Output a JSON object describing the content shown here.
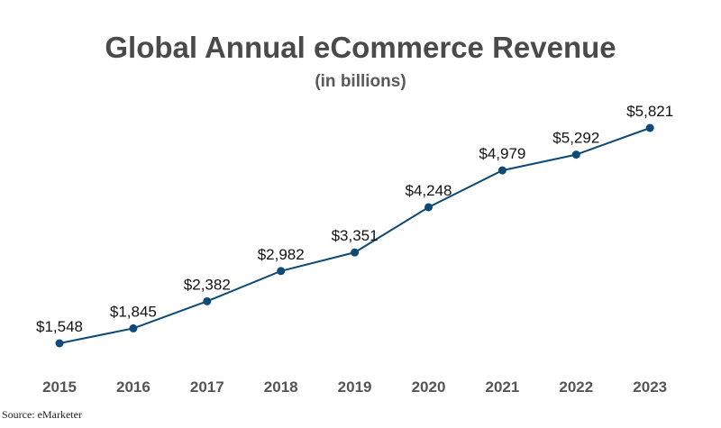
{
  "chart_data": {
    "type": "line",
    "title": "Global Annual eCommerce Revenue",
    "subtitle": "(in billions)",
    "categories": [
      "2015",
      "2016",
      "2017",
      "2018",
      "2019",
      "2020",
      "2021",
      "2022",
      "2023"
    ],
    "values": [
      1548,
      1845,
      2382,
      2982,
      3351,
      4248,
      4979,
      5292,
      5821
    ],
    "data_labels": [
      "$1,548",
      "$1,845",
      "$2,382",
      "$2,982",
      "$3,351",
      "$4,248",
      "$4,979",
      "$5,292",
      "$5,821"
    ],
    "xlabel": "",
    "ylabel": "",
    "grid": false,
    "legend": "none",
    "line_color": "#0d4a78"
  },
  "source": "Source: eMarketer"
}
